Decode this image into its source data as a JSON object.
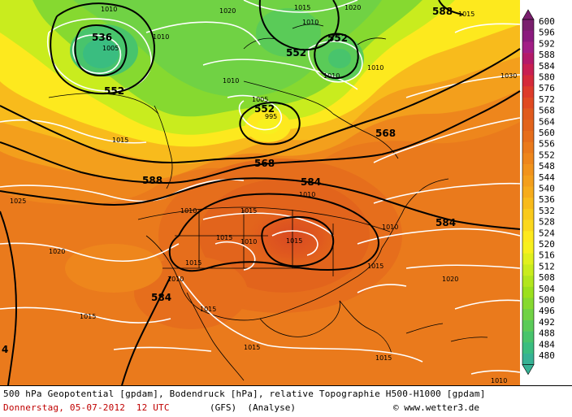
{
  "colors": {
    "scale": [
      "#7a1f6e",
      "#8b1a7e",
      "#a21e86",
      "#b31a6a",
      "#c81f52",
      "#d52a3a",
      "#dd3b2a",
      "#e04a22",
      "#e05a1e",
      "#e2641c",
      "#e66e1c",
      "#ea7a1c",
      "#ee861c",
      "#f1931c",
      "#f39f1c",
      "#f6ac1c",
      "#f8bb1c",
      "#f9ca1c",
      "#fbd81e",
      "#fde91e",
      "#f7f01e",
      "#e0f01e",
      "#c9ec1e",
      "#b2e61e",
      "#9be01e",
      "#86d930",
      "#70d244",
      "#5acb58",
      "#48c46c",
      "#3abd80",
      "#36b294"
    ],
    "land": "#000000",
    "isobar": "#ffffff"
  },
  "legend": {
    "values": [
      "600",
      "596",
      "592",
      "588",
      "584",
      "580",
      "576",
      "572",
      "568",
      "564",
      "560",
      "556",
      "552",
      "548",
      "544",
      "540",
      "536",
      "532",
      "528",
      "524",
      "520",
      "516",
      "512",
      "508",
      "504",
      "500",
      "496",
      "492",
      "488",
      "484",
      "480"
    ]
  },
  "geopotential_labels": [
    {
      "text": "536"
    },
    {
      "text": "552"
    },
    {
      "text": "552"
    },
    {
      "text": "552"
    },
    {
      "text": "552"
    },
    {
      "text": "588"
    },
    {
      "text": "568"
    },
    {
      "text": "568"
    },
    {
      "text": "584"
    },
    {
      "text": "584"
    },
    {
      "text": "584"
    },
    {
      "text": "588"
    },
    {
      "text": "4"
    }
  ],
  "pressure_labels": [
    {
      "text": "1010"
    },
    {
      "text": "1005"
    },
    {
      "text": "1010"
    },
    {
      "text": "1010"
    },
    {
      "text": "1020"
    },
    {
      "text": "1015"
    },
    {
      "text": "1010"
    },
    {
      "text": "1015"
    },
    {
      "text": "1020"
    },
    {
      "text": "1010"
    },
    {
      "text": "1010"
    },
    {
      "text": "1030"
    },
    {
      "text": "1005"
    },
    {
      "text": "995"
    },
    {
      "text": "1015"
    },
    {
      "text": "1025"
    },
    {
      "text": "1020"
    },
    {
      "text": "1010"
    },
    {
      "text": "1015"
    },
    {
      "text": "1010"
    },
    {
      "text": "1015"
    },
    {
      "text": "1015"
    },
    {
      "text": "1010"
    },
    {
      "text": "1015"
    },
    {
      "text": "1010"
    },
    {
      "text": "1015"
    },
    {
      "text": "1020"
    },
    {
      "text": "1015"
    },
    {
      "text": "1015"
    },
    {
      "text": "1015"
    },
    {
      "text": "1010"
    },
    {
      "text": "1010"
    }
  ],
  "footer": {
    "line1": "500 hPa Geopotential [gpdam], Bodendruck [hPa], relative Topographie H500-H1000 [gpdam]",
    "date_line": "Donnerstag, 05-07-2012  12 UTC",
    "model": "(GFS)  (Analyse)",
    "site": "© www.wetter3.de"
  }
}
